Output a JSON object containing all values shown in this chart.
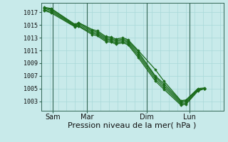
{
  "background_color": "#c8eaea",
  "grid_minor_color": "#a8d8d8",
  "grid_major_color": "#336655",
  "line_color": "#1a6b1a",
  "marker_color": "#1a6b1a",
  "xlabel": "Pression niveau de la mer( hPa )",
  "xlabel_fontsize": 8,
  "yticks": [
    1003,
    1005,
    1007,
    1009,
    1011,
    1013,
    1015,
    1017
  ],
  "ylim": [
    1001.5,
    1018.5
  ],
  "xtick_labels": [
    "Sam",
    "Mar",
    "Dim",
    "Lun"
  ],
  "xtick_positions": [
    0.5,
    2.5,
    6.0,
    8.5
  ],
  "xlim": [
    -0.2,
    10.5
  ],
  "vline_positions": [
    0.5,
    2.5,
    6.0,
    8.5
  ],
  "series": [
    [
      1017.8,
      1017.6,
      1015.1,
      1015.4,
      1014.3,
      1014.1,
      1013.2,
      1013.1,
      1012.8,
      1013.0,
      1012.7,
      1011.0,
      1008.0,
      1006.2,
      1003.1,
      1003.2,
      1005.0,
      1005.1
    ],
    [
      1017.7,
      1017.5,
      1015.0,
      1015.3,
      1014.1,
      1013.9,
      1013.0,
      1012.9,
      1012.6,
      1012.8,
      1012.5,
      1010.8,
      1007.0,
      1005.8,
      1003.0,
      1003.1,
      1004.9,
      1005.0
    ],
    [
      1017.6,
      1017.3,
      1014.9,
      1015.1,
      1013.9,
      1013.7,
      1012.8,
      1012.7,
      1012.4,
      1012.6,
      1012.3,
      1010.5,
      1006.8,
      1005.5,
      1002.8,
      1002.9,
      1004.8,
      1005.0
    ],
    [
      1017.4,
      1017.1,
      1014.8,
      1014.9,
      1013.7,
      1013.5,
      1012.6,
      1012.5,
      1012.2,
      1012.4,
      1012.1,
      1010.2,
      1006.5,
      1005.2,
      1002.6,
      1002.7,
      1004.7,
      1005.0
    ],
    [
      1017.3,
      1016.9,
      1014.7,
      1014.8,
      1013.5,
      1013.3,
      1012.4,
      1012.3,
      1012.0,
      1012.2,
      1011.9,
      1009.9,
      1006.2,
      1004.9,
      1002.4,
      1002.5,
      1004.6,
      1005.0
    ]
  ],
  "x_positions": [
    0.0,
    0.4,
    1.8,
    2.0,
    2.8,
    3.1,
    3.6,
    3.9,
    4.2,
    4.6,
    4.9,
    5.5,
    6.5,
    7.0,
    8.0,
    8.3,
    9.0,
    9.4
  ]
}
